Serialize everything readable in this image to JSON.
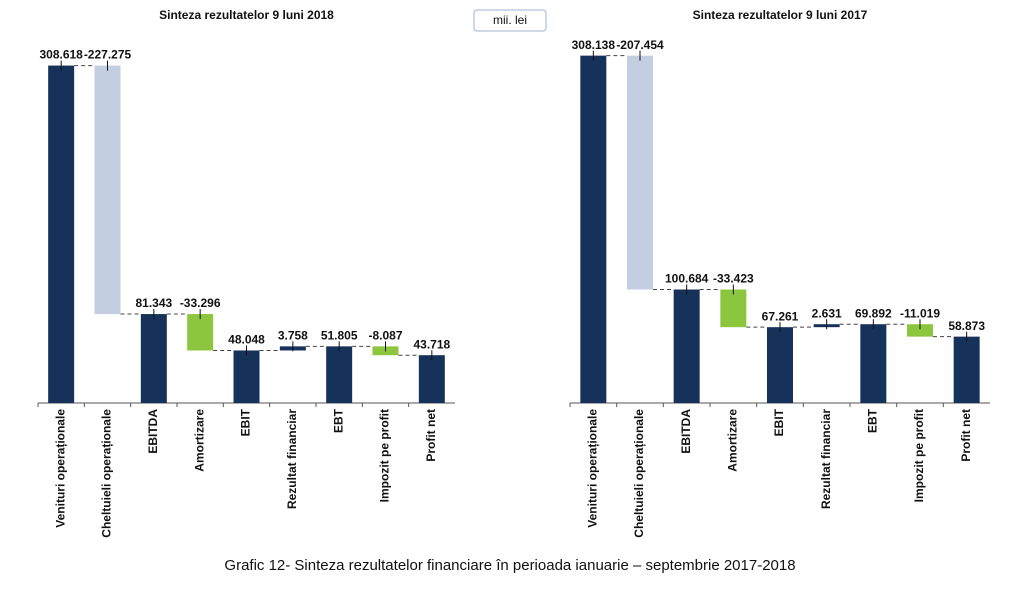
{
  "unit_label": "mii. lei",
  "caption": "Grafic 12- Sinteza rezultatelor financiare în perioada ianuarie – septembrie  2017-2018",
  "chart_data": [
    {
      "type": "waterfall",
      "title": "Sinteza rezultatelor 9 luni 2018",
      "categories": [
        "Venituri operaționale",
        "Cheltuieli operaționale",
        "EBITDA",
        "Amortizare",
        "EBIT",
        "Rezultat financiar",
        "EBT",
        "Impozit pe profit",
        "Profit net"
      ],
      "values": [
        308.618,
        -227.275,
        81.343,
        -33.296,
        48.048,
        3.758,
        51.805,
        -8.087,
        43.718
      ],
      "measure": [
        "absolute",
        "relative",
        "absolute",
        "relative",
        "absolute",
        "relative",
        "absolute",
        "relative",
        "absolute"
      ],
      "colors": [
        "#17325a",
        "#c3cee0",
        "#17325a",
        "#8cc63f",
        "#17325a",
        "#17325a",
        "#17325a",
        "#8cc63f",
        "#17325a"
      ],
      "ylim": [
        0,
        332
      ]
    },
    {
      "type": "waterfall",
      "title": "Sinteza rezultatelor 9 luni 2017",
      "categories": [
        "Venituri operaționale",
        "Cheltuieli operaționale",
        "EBITDA",
        "Amortizare",
        "EBIT",
        "Rezultat financiar",
        "EBT",
        "Impozit pe profit",
        "Profit net"
      ],
      "values": [
        308.138,
        -207.454,
        100.684,
        -33.423,
        67.261,
        2.631,
        69.892,
        -11.019,
        58.873
      ],
      "measure": [
        "absolute",
        "relative",
        "absolute",
        "relative",
        "absolute",
        "relative",
        "absolute",
        "relative",
        "absolute"
      ],
      "colors": [
        "#17325a",
        "#c3cee0",
        "#17325a",
        "#8cc63f",
        "#17325a",
        "#17325a",
        "#17325a",
        "#8cc63f",
        "#17325a"
      ],
      "ylim": [
        0,
        322
      ]
    }
  ]
}
